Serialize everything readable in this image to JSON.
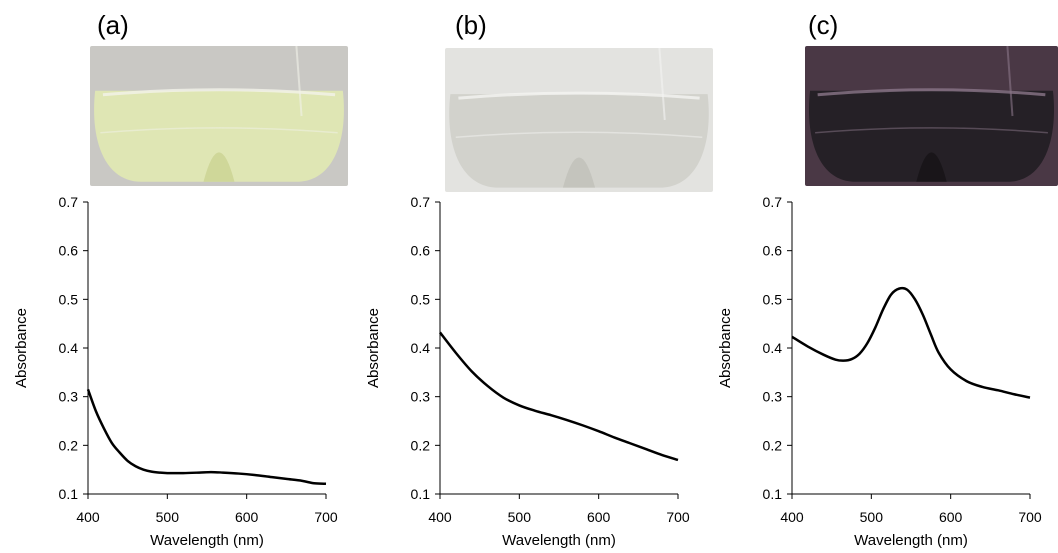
{
  "chart_data": [
    {
      "type": "line",
      "panel_label": "(a)",
      "photo_colors": {
        "background": "#c9c8c4",
        "liquid": "#dfe6b4",
        "liquid_dark": "#c8d08d",
        "glass_edge": "#f2f2ea"
      },
      "xlabel": "Wavelength (nm)",
      "ylabel": "Absorbance",
      "xlim": [
        400,
        700
      ],
      "ylim": [
        0.1,
        0.7
      ],
      "x_ticks": [
        "400",
        "500",
        "600",
        "700"
      ],
      "y_ticks": [
        "0.1",
        "0.2",
        "0.3",
        "0.4",
        "0.5",
        "0.6",
        "0.7"
      ],
      "grid": false,
      "series": [
        {
          "color": "#000000",
          "points": [
            [
              400,
              0.315
            ],
            [
              410,
              0.27
            ],
            [
              420,
              0.235
            ],
            [
              430,
              0.205
            ],
            [
              440,
              0.185
            ],
            [
              450,
              0.168
            ],
            [
              460,
              0.157
            ],
            [
              470,
              0.15
            ],
            [
              480,
              0.146
            ],
            [
              490,
              0.144
            ],
            [
              500,
              0.143
            ],
            [
              520,
              0.143
            ],
            [
              540,
              0.144
            ],
            [
              555,
              0.145
            ],
            [
              570,
              0.144
            ],
            [
              590,
              0.142
            ],
            [
              610,
              0.139
            ],
            [
              630,
              0.135
            ],
            [
              650,
              0.131
            ],
            [
              670,
              0.127
            ],
            [
              685,
              0.122
            ],
            [
              700,
              0.121
            ]
          ]
        }
      ]
    },
    {
      "type": "line",
      "panel_label": "(b)",
      "photo_colors": {
        "background": "#e3e3e0",
        "liquid": "#d2d2cc",
        "liquid_dark": "#bdbdb6",
        "glass_edge": "#f4f4f1"
      },
      "xlabel": "Wavelength (nm)",
      "ylabel": "Absorbance",
      "xlim": [
        400,
        700
      ],
      "ylim": [
        0.1,
        0.7
      ],
      "x_ticks": [
        "400",
        "500",
        "600",
        "700"
      ],
      "y_ticks": [
        "0.1",
        "0.2",
        "0.3",
        "0.4",
        "0.5",
        "0.6",
        "0.7"
      ],
      "grid": false,
      "series": [
        {
          "color": "#000000",
          "points": [
            [
              400,
              0.432
            ],
            [
              420,
              0.39
            ],
            [
              440,
              0.352
            ],
            [
              460,
              0.322
            ],
            [
              480,
              0.298
            ],
            [
              500,
              0.282
            ],
            [
              520,
              0.271
            ],
            [
              540,
              0.262
            ],
            [
              560,
              0.252
            ],
            [
              580,
              0.241
            ],
            [
              600,
              0.229
            ],
            [
              620,
              0.216
            ],
            [
              640,
              0.204
            ],
            [
              660,
              0.192
            ],
            [
              680,
              0.18
            ],
            [
              700,
              0.17
            ]
          ]
        }
      ]
    },
    {
      "type": "line",
      "panel_label": "(c)",
      "photo_colors": {
        "background": "#4a3845",
        "liquid": "#252026",
        "liquid_dark": "#141114",
        "glass_edge": "#8a7688"
      },
      "xlabel": "Wavelength (nm)",
      "ylabel": "Absorbance",
      "xlim": [
        400,
        700
      ],
      "ylim": [
        0.1,
        0.7
      ],
      "x_ticks": [
        "400",
        "500",
        "600",
        "700"
      ],
      "y_ticks": [
        "0.1",
        "0.2",
        "0.3",
        "0.4",
        "0.5",
        "0.6",
        "0.7"
      ],
      "grid": false,
      "series": [
        {
          "color": "#000000",
          "points": [
            [
              400,
              0.423
            ],
            [
              420,
              0.403
            ],
            [
              440,
              0.386
            ],
            [
              455,
              0.376
            ],
            [
              465,
              0.374
            ],
            [
              475,
              0.377
            ],
            [
              485,
              0.388
            ],
            [
              495,
              0.41
            ],
            [
              505,
              0.442
            ],
            [
              515,
              0.48
            ],
            [
              525,
              0.51
            ],
            [
              535,
              0.522
            ],
            [
              545,
              0.52
            ],
            [
              555,
              0.5
            ],
            [
              565,
              0.468
            ],
            [
              575,
              0.428
            ],
            [
              585,
              0.39
            ],
            [
              600,
              0.356
            ],
            [
              620,
              0.332
            ],
            [
              640,
              0.32
            ],
            [
              660,
              0.313
            ],
            [
              680,
              0.305
            ],
            [
              700,
              0.298
            ]
          ]
        }
      ]
    }
  ]
}
